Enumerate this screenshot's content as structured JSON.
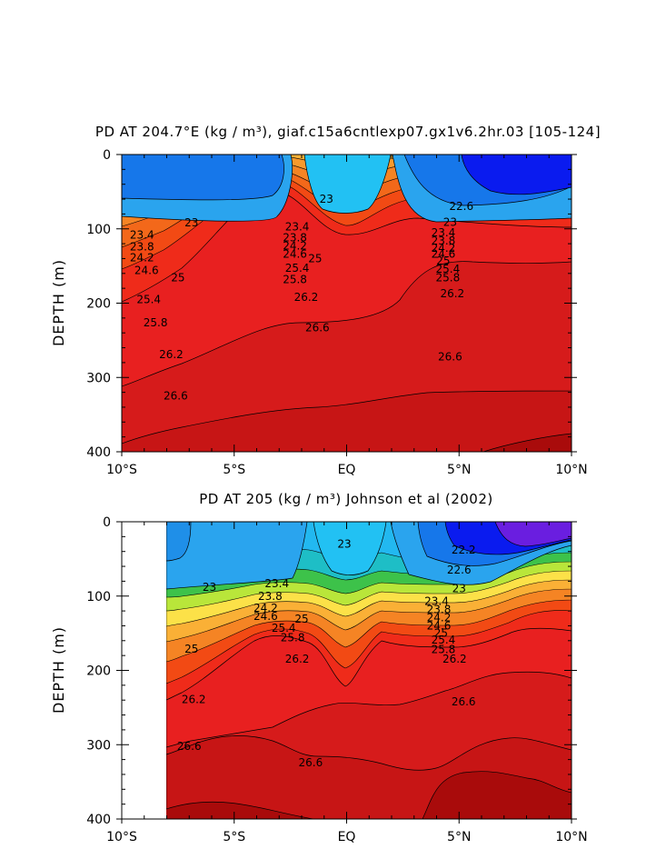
{
  "chart_data": [
    {
      "type": "heatmap",
      "variant": "contour",
      "title": "PD AT 204.7°E (kg / m³), giaf.c15a6cntlexp07.gx1v6.2hr.03 [105-124]",
      "ylabel": "DEPTH (m)",
      "xlabel": "",
      "x_ticks": [
        "10°S",
        "5°S",
        "EQ",
        "5°N",
        "10°N"
      ],
      "y_ticks": [
        "0",
        "100",
        "200",
        "300",
        "400"
      ],
      "xlim": [
        -10,
        10
      ],
      "ylim": [
        400,
        0
      ],
      "contour_interval": 0.2,
      "contour_labels": [
        {
          "text": "23",
          "x": -6.9,
          "y": 92
        },
        {
          "text": "23",
          "x": -0.9,
          "y": 60
        },
        {
          "text": "23.4",
          "x": -9.1,
          "y": 108
        },
        {
          "text": "23.8",
          "x": -9.1,
          "y": 124
        },
        {
          "text": "24.2",
          "x": -9.1,
          "y": 139
        },
        {
          "text": "24.6",
          "x": -8.9,
          "y": 156
        },
        {
          "text": "25",
          "x": -7.5,
          "y": 166
        },
        {
          "text": "25.4",
          "x": -8.8,
          "y": 195
        },
        {
          "text": "25.8",
          "x": -8.5,
          "y": 226
        },
        {
          "text": "26.2",
          "x": -7.8,
          "y": 269
        },
        {
          "text": "26.6",
          "x": -7.6,
          "y": 325
        },
        {
          "text": "23.4",
          "x": -2.2,
          "y": 97
        },
        {
          "text": "23.8",
          "x": -2.3,
          "y": 112
        },
        {
          "text": "24.2",
          "x": -2.3,
          "y": 123
        },
        {
          "text": "24.6",
          "x": -2.3,
          "y": 134
        },
        {
          "text": "25",
          "x": -1.4,
          "y": 140
        },
        {
          "text": "25.4",
          "x": -2.2,
          "y": 153
        },
        {
          "text": "25.8",
          "x": -2.3,
          "y": 168
        },
        {
          "text": "26.2",
          "x": -1.8,
          "y": 192
        },
        {
          "text": "26.6",
          "x": -1.3,
          "y": 233
        },
        {
          "text": "22.6",
          "x": 5.1,
          "y": 70
        },
        {
          "text": "23",
          "x": 4.6,
          "y": 91
        },
        {
          "text": "23.4",
          "x": 4.3,
          "y": 105
        },
        {
          "text": "23.8",
          "x": 4.3,
          "y": 116
        },
        {
          "text": "24.2",
          "x": 4.3,
          "y": 126
        },
        {
          "text": "24.6",
          "x": 4.3,
          "y": 134
        },
        {
          "text": "25",
          "x": 4.3,
          "y": 143
        },
        {
          "text": "25.4",
          "x": 4.5,
          "y": 154
        },
        {
          "text": "25.8",
          "x": 4.5,
          "y": 166
        },
        {
          "text": "26.2",
          "x": 4.7,
          "y": 187
        },
        {
          "text": "26.6",
          "x": 4.6,
          "y": 272
        }
      ]
    },
    {
      "type": "heatmap",
      "variant": "contour",
      "title": "PD AT 205 (kg / m³) Johnson et al (2002)",
      "ylabel": "DEPTH (m)",
      "xlabel": "",
      "x_ticks": [
        "10°S",
        "5°S",
        "EQ",
        "5°N",
        "10°N"
      ],
      "y_ticks": [
        "0",
        "100",
        "200",
        "300",
        "400"
      ],
      "xlim": [
        -10,
        10
      ],
      "ylim": [
        400,
        0
      ],
      "data_xlim": [
        -8,
        10
      ],
      "contour_interval": 0.2,
      "contour_labels": [
        {
          "text": "23",
          "x": -6.1,
          "y": 88
        },
        {
          "text": "23",
          "x": -0.1,
          "y": 30
        },
        {
          "text": "23.4",
          "x": -3.1,
          "y": 83
        },
        {
          "text": "23.8",
          "x": -3.4,
          "y": 100
        },
        {
          "text": "24.2",
          "x": -3.6,
          "y": 116
        },
        {
          "text": "24.6",
          "x": -3.6,
          "y": 127
        },
        {
          "text": "25",
          "x": -2.0,
          "y": 131
        },
        {
          "text": "25.4",
          "x": -2.8,
          "y": 143
        },
        {
          "text": "25.8",
          "x": -2.4,
          "y": 156
        },
        {
          "text": "25",
          "x": -6.9,
          "y": 171
        },
        {
          "text": "26.2",
          "x": -2.2,
          "y": 185
        },
        {
          "text": "26.2",
          "x": -6.8,
          "y": 239
        },
        {
          "text": "26.6",
          "x": -7.0,
          "y": 302
        },
        {
          "text": "26.6",
          "x": -1.6,
          "y": 324
        },
        {
          "text": "22.2",
          "x": 5.2,
          "y": 38
        },
        {
          "text": "22.6",
          "x": 5.0,
          "y": 65
        },
        {
          "text": "23",
          "x": 5.0,
          "y": 90
        },
        {
          "text": "23.4",
          "x": 4.0,
          "y": 107
        },
        {
          "text": "23.8",
          "x": 4.1,
          "y": 118
        },
        {
          "text": "24.2",
          "x": 4.1,
          "y": 129
        },
        {
          "text": "24.6",
          "x": 4.1,
          "y": 140
        },
        {
          "text": "25",
          "x": 4.2,
          "y": 150
        },
        {
          "text": "25.4",
          "x": 4.3,
          "y": 159
        },
        {
          "text": "25.8",
          "x": 4.3,
          "y": 172
        },
        {
          "text": "26.2",
          "x": 4.8,
          "y": 185
        },
        {
          "text": "26.6",
          "x": 5.2,
          "y": 242
        }
      ]
    }
  ]
}
